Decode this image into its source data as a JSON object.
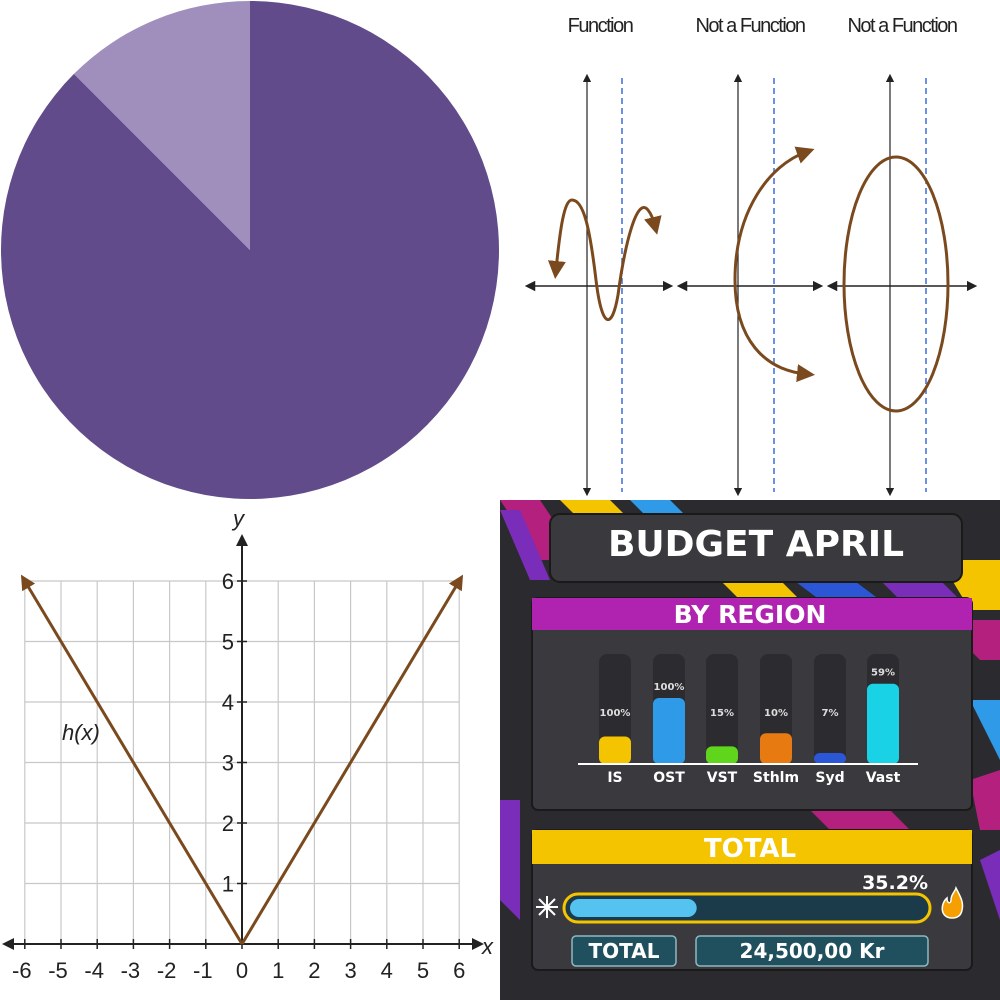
{
  "chart_data": [
    {
      "type": "pie",
      "slices": [
        {
          "value": 87.5,
          "color": "#614b8a"
        },
        {
          "value": 12.5,
          "color": "#a08fbd"
        }
      ]
    },
    {
      "type": "diagram",
      "panels": [
        {
          "title": "Function"
        },
        {
          "title": "Not a Function"
        },
        {
          "title": "Not a Function"
        }
      ],
      "curve_color": "#7a4a1e",
      "dashed_line_color": "#3a6fd8"
    },
    {
      "type": "line",
      "title": "",
      "xlabel": "x",
      "ylabel": "y",
      "xlim": [
        -6,
        6
      ],
      "ylim": [
        0,
        6
      ],
      "x_ticks": [
        "-6",
        "-5",
        "-4",
        "-3",
        "-2",
        "-1",
        "0",
        "1",
        "2",
        "3",
        "4",
        "5",
        "6"
      ],
      "y_ticks": [
        "1",
        "2",
        "3",
        "4",
        "5",
        "6"
      ],
      "grid": true,
      "series": [
        {
          "name": "h(x)",
          "x": [
            -6,
            0,
            6
          ],
          "y": [
            6,
            0,
            6
          ],
          "color": "#7a4a1e"
        }
      ]
    },
    {
      "type": "bar",
      "title": "BUDGET APRIL",
      "subtitle": "BY REGION",
      "categories": [
        "IS",
        "OST",
        "VST",
        "Sthlm",
        "Syd",
        "Vast"
      ],
      "value_labels": [
        "100%",
        "100%",
        "15%",
        "10%",
        "7%",
        "59%"
      ],
      "values": [
        25,
        60,
        16,
        28,
        10,
        73
      ],
      "bar_colors": [
        "#f5c400",
        "#2f9be8",
        "#5fd61c",
        "#e87a12",
        "#2b57d6",
        "#19d2e6"
      ],
      "total": {
        "header": "TOTAL",
        "percent_label": "35.2%",
        "progress": 0.352,
        "label": "TOTAL",
        "amount": "24,500,00 Kr"
      }
    }
  ]
}
